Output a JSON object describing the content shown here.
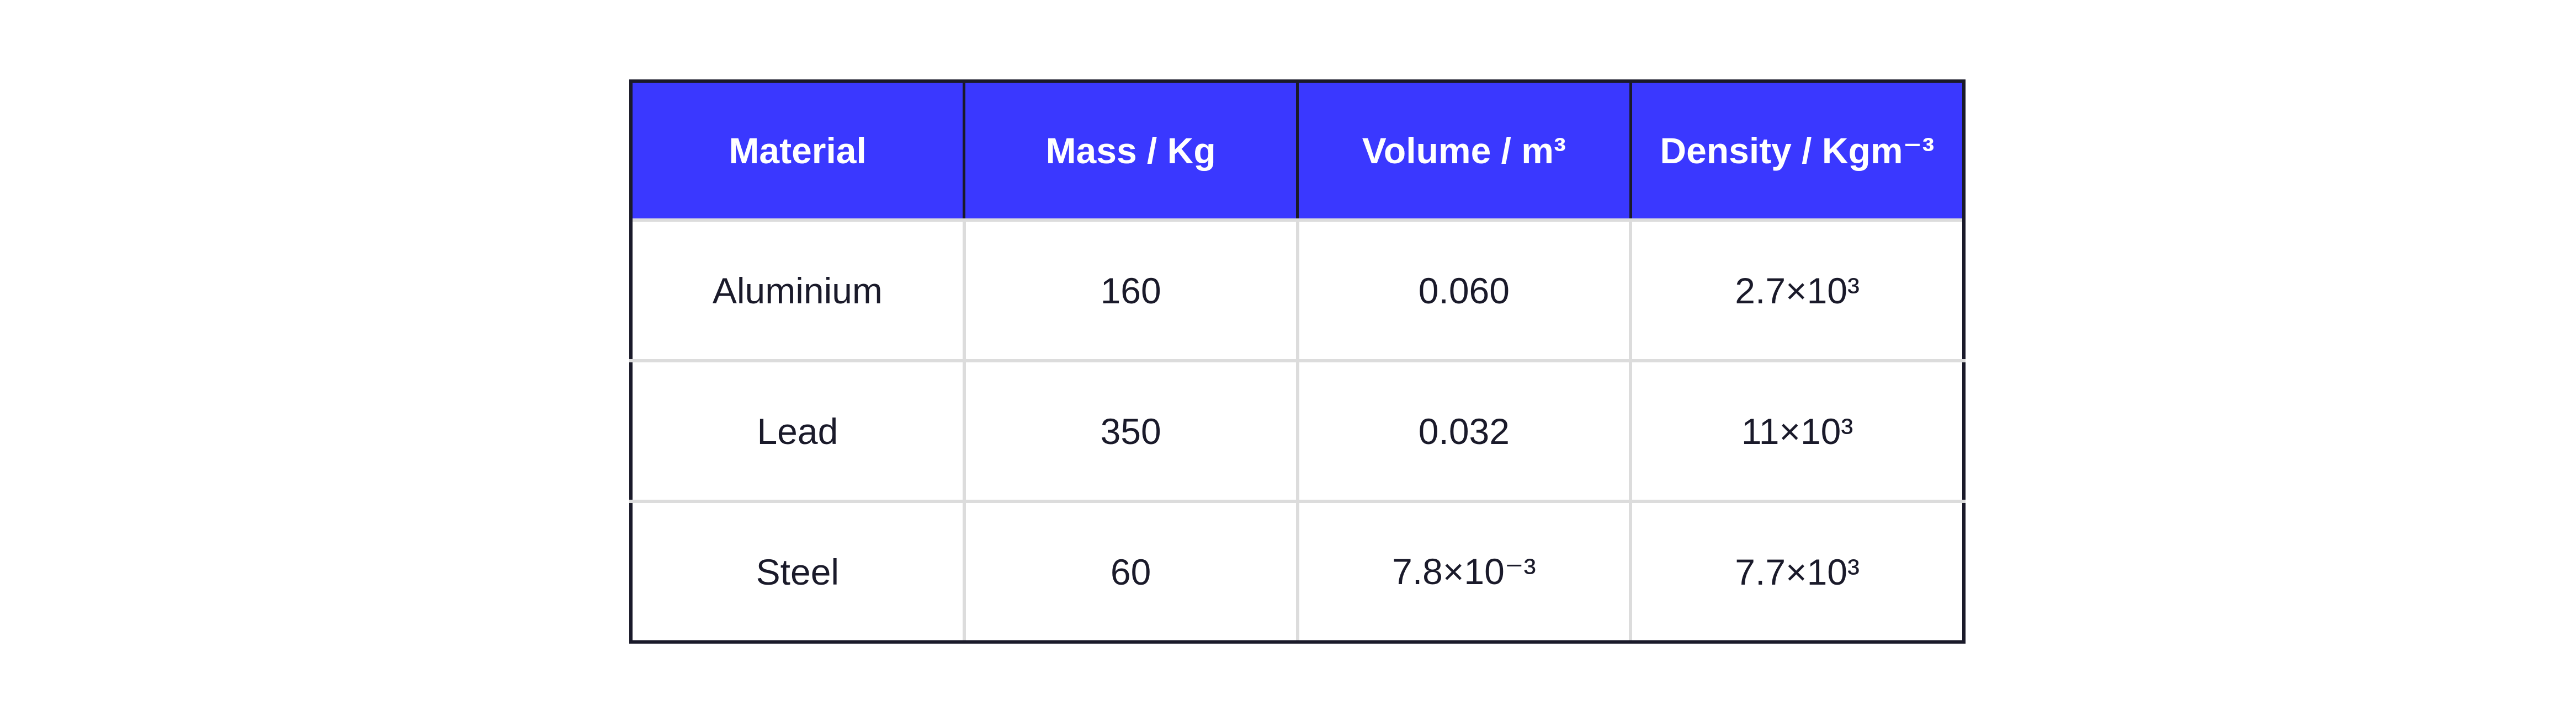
{
  "table": {
    "header": [
      "Material",
      "Mass / Kg",
      "Volume / m³",
      "Density / Kgm⁻³"
    ],
    "rows": [
      [
        "Aluminium",
        "160",
        "0.060",
        "2.7×10³"
      ],
      [
        "Lead",
        "350",
        "0.032",
        "11×10³"
      ],
      [
        "Steel",
        "60",
        "7.8×10⁻³",
        "7.7×10³"
      ]
    ]
  }
}
